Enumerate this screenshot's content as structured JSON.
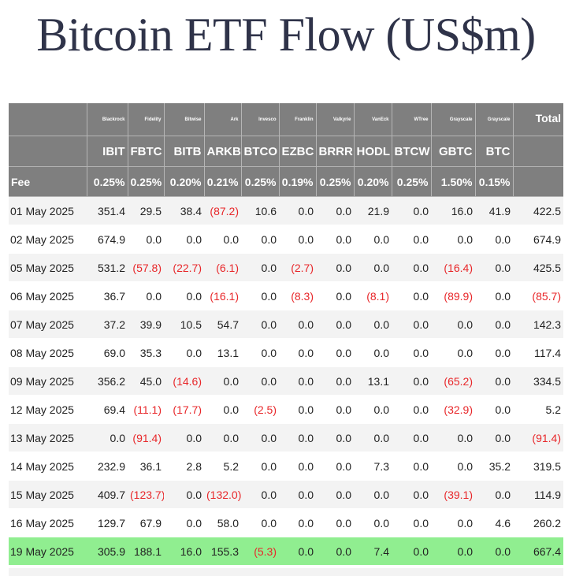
{
  "title": "Bitcoin ETF Flow (US$m)",
  "columns": [
    {
      "issuer": "",
      "ticker": "",
      "fee": "Fee"
    },
    {
      "issuer": "Blackrock",
      "ticker": "IBIT",
      "fee": "0.25%"
    },
    {
      "issuer": "Fidelity",
      "ticker": "FBTC",
      "fee": "0.25%"
    },
    {
      "issuer": "Bitwise",
      "ticker": "BITB",
      "fee": "0.20%"
    },
    {
      "issuer": "Ark",
      "ticker": "ARKB",
      "fee": "0.21%"
    },
    {
      "issuer": "Invesco",
      "ticker": "BTCO",
      "fee": "0.25%"
    },
    {
      "issuer": "Franklin",
      "ticker": "EZBC",
      "fee": "0.19%"
    },
    {
      "issuer": "Valkyrie",
      "ticker": "BRRR",
      "fee": "0.25%"
    },
    {
      "issuer": "VanEck",
      "ticker": "HODL",
      "fee": "0.20%"
    },
    {
      "issuer": "WTree",
      "ticker": "BTCW",
      "fee": "0.25%"
    },
    {
      "issuer": "Grayscale",
      "ticker": "GBTC",
      "fee": "1.50%"
    },
    {
      "issuer": "Grayscale",
      "ticker": "BTC",
      "fee": "0.15%"
    },
    {
      "issuer": "Total",
      "ticker": "",
      "fee": ""
    }
  ],
  "rows": [
    {
      "date": "01 May 2025",
      "values": [
        "351.4",
        "29.5",
        "38.4",
        "(87.2)",
        "10.6",
        "0.0",
        "0.0",
        "21.9",
        "0.0",
        "16.0",
        "41.9",
        "422.5"
      ]
    },
    {
      "date": "02 May 2025",
      "values": [
        "674.9",
        "0.0",
        "0.0",
        "0.0",
        "0.0",
        "0.0",
        "0.0",
        "0.0",
        "0.0",
        "0.0",
        "0.0",
        "674.9"
      ]
    },
    {
      "date": "05 May 2025",
      "values": [
        "531.2",
        "(57.8)",
        "(22.7)",
        "(6.1)",
        "0.0",
        "(2.7)",
        "0.0",
        "0.0",
        "0.0",
        "(16.4)",
        "0.0",
        "425.5"
      ]
    },
    {
      "date": "06 May 2025",
      "values": [
        "36.7",
        "0.0",
        "0.0",
        "(16.1)",
        "0.0",
        "(8.3)",
        "0.0",
        "(8.1)",
        "0.0",
        "(89.9)",
        "0.0",
        "(85.7)"
      ]
    },
    {
      "date": "07 May 2025",
      "values": [
        "37.2",
        "39.9",
        "10.5",
        "54.7",
        "0.0",
        "0.0",
        "0.0",
        "0.0",
        "0.0",
        "0.0",
        "0.0",
        "142.3"
      ]
    },
    {
      "date": "08 May 2025",
      "values": [
        "69.0",
        "35.3",
        "0.0",
        "13.1",
        "0.0",
        "0.0",
        "0.0",
        "0.0",
        "0.0",
        "0.0",
        "0.0",
        "117.4"
      ]
    },
    {
      "date": "09 May 2025",
      "values": [
        "356.2",
        "45.0",
        "(14.6)",
        "0.0",
        "0.0",
        "0.0",
        "0.0",
        "13.1",
        "0.0",
        "(65.2)",
        "0.0",
        "334.5"
      ]
    },
    {
      "date": "12 May 2025",
      "values": [
        "69.4",
        "(11.1)",
        "(17.7)",
        "0.0",
        "(2.5)",
        "0.0",
        "0.0",
        "0.0",
        "0.0",
        "(32.9)",
        "0.0",
        "5.2"
      ]
    },
    {
      "date": "13 May 2025",
      "values": [
        "0.0",
        "(91.4)",
        "0.0",
        "0.0",
        "0.0",
        "0.0",
        "0.0",
        "0.0",
        "0.0",
        "0.0",
        "0.0",
        "(91.4)"
      ]
    },
    {
      "date": "14 May 2025",
      "values": [
        "232.9",
        "36.1",
        "2.8",
        "5.2",
        "0.0",
        "0.0",
        "0.0",
        "7.3",
        "0.0",
        "0.0",
        "35.2",
        "319.5"
      ]
    },
    {
      "date": "15 May 2025",
      "values": [
        "409.7",
        "(123.7)",
        "0.0",
        "(132.0)",
        "0.0",
        "0.0",
        "0.0",
        "0.0",
        "0.0",
        "(39.1)",
        "0.0",
        "114.9"
      ]
    },
    {
      "date": "16 May 2025",
      "values": [
        "129.7",
        "67.9",
        "0.0",
        "58.0",
        "0.0",
        "0.0",
        "0.0",
        "0.0",
        "0.0",
        "0.0",
        "4.6",
        "260.2"
      ]
    },
    {
      "date": "19 May 2025",
      "values": [
        "305.9",
        "188.1",
        "16.0",
        "155.3",
        "(5.3)",
        "0.0",
        "0.0",
        "7.4",
        "0.0",
        "0.0",
        "0.0",
        "667.4"
      ],
      "highlight": true
    }
  ],
  "colors": {
    "header_bg": "#7f7f7f",
    "negative": "#e8272a",
    "highlight_row": "#90ee90",
    "title": "#2f3349"
  }
}
